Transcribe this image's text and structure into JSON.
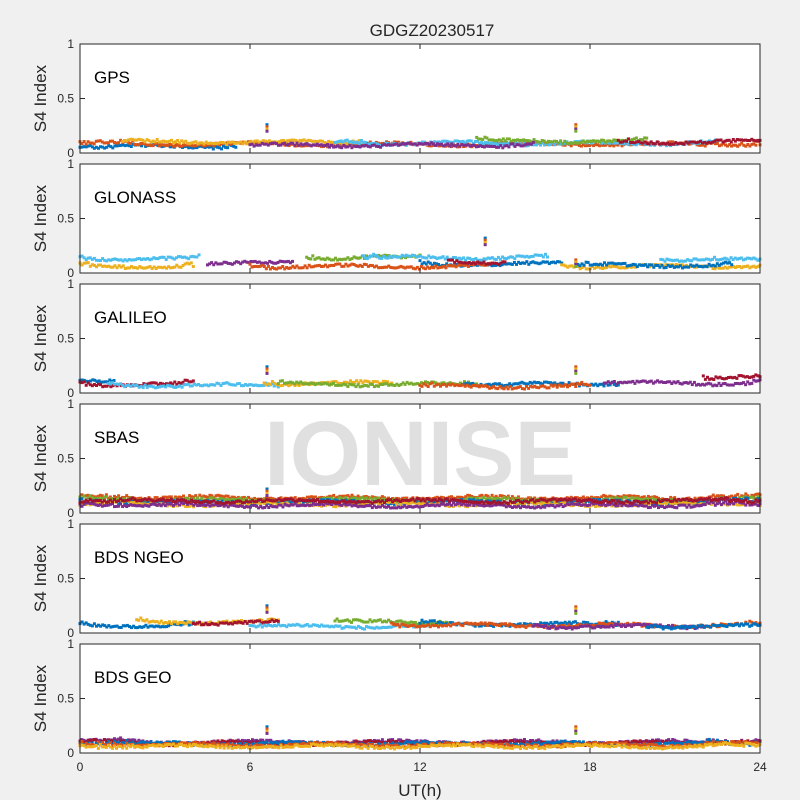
{
  "figure": {
    "title": "GDGZ20230517",
    "xlabel": "UT(h)",
    "watermark": "IONISE"
  },
  "chart_data": {
    "type": "scatter",
    "title": "GDGZ20230517",
    "xlabel": "UT(h)",
    "ylabel": "S4 Index",
    "xlim": [
      0,
      24
    ],
    "ylim": [
      0,
      1
    ],
    "x_ticks": [
      "0",
      "6",
      "12",
      "18",
      "24"
    ],
    "y_ticks": [
      "0",
      "0.5",
      "1"
    ],
    "grid": false,
    "series_colors": [
      "#0072BD",
      "#D95319",
      "#EDB120",
      "#7E2F8E",
      "#77AC30",
      "#4DBEEE",
      "#A2142F"
    ],
    "panels": [
      {
        "label": "GPS",
        "ylabel": "S4 Index",
        "s4_range": [
          0.04,
          0.16
        ],
        "spikes": [
          {
            "x": 6.6,
            "y": 0.26
          },
          {
            "x": 17.5,
            "y": 0.26
          }
        ],
        "arcs": [
          {
            "color": "#0072BD",
            "start": 0.0,
            "end": 5.5,
            "level": 0.06
          },
          {
            "color": "#D95319",
            "start": 0.0,
            "end": 24.0,
            "level": 0.08
          },
          {
            "color": "#EDB120",
            "start": 1.5,
            "end": 10.0,
            "level": 0.1
          },
          {
            "color": "#4DBEEE",
            "start": 9.0,
            "end": 22.5,
            "level": 0.09
          },
          {
            "color": "#77AC30",
            "start": 14.0,
            "end": 20.0,
            "level": 0.11
          },
          {
            "color": "#7E2F8E",
            "start": 6.0,
            "end": 16.0,
            "level": 0.07
          },
          {
            "color": "#A2142F",
            "start": 19.0,
            "end": 24.0,
            "level": 0.1
          }
        ]
      },
      {
        "label": "GLONASS",
        "ylabel": "S4 Index",
        "s4_range": [
          0.04,
          0.2
        ],
        "spikes": [
          {
            "x": 14.3,
            "y": 0.32
          },
          {
            "x": 17.5,
            "y": 0.12
          }
        ],
        "arcs": [
          {
            "color": "#4DBEEE",
            "start": 0.0,
            "end": 4.2,
            "level": 0.13
          },
          {
            "color": "#EDB120",
            "start": 0.0,
            "end": 4.0,
            "level": 0.06
          },
          {
            "color": "#7E2F8E",
            "start": 4.5,
            "end": 7.5,
            "level": 0.09
          },
          {
            "color": "#77AC30",
            "start": 8.0,
            "end": 12.0,
            "level": 0.14
          },
          {
            "color": "#4DBEEE",
            "start": 10.0,
            "end": 16.5,
            "level": 0.14
          },
          {
            "color": "#0072BD",
            "start": 12.0,
            "end": 17.0,
            "level": 0.08
          },
          {
            "color": "#D95319",
            "start": 6.0,
            "end": 14.5,
            "level": 0.06
          },
          {
            "color": "#A2142F",
            "start": 13.0,
            "end": 15.0,
            "level": 0.1
          },
          {
            "color": "#4DBEEE",
            "start": 20.5,
            "end": 24.0,
            "level": 0.12
          },
          {
            "color": "#EDB120",
            "start": 17.0,
            "end": 24.0,
            "level": 0.06
          },
          {
            "color": "#0072BD",
            "start": 17.5,
            "end": 23.0,
            "level": 0.07
          }
        ]
      },
      {
        "label": "GALILEO",
        "ylabel": "S4 Index",
        "s4_range": [
          0.04,
          0.18
        ],
        "spikes": [
          {
            "x": 6.6,
            "y": 0.24
          },
          {
            "x": 17.5,
            "y": 0.24
          }
        ],
        "arcs": [
          {
            "color": "#0072BD",
            "start": 0.0,
            "end": 1.2,
            "level": 0.1
          },
          {
            "color": "#A2142F",
            "start": 0.0,
            "end": 4.0,
            "level": 0.08
          },
          {
            "color": "#4DBEEE",
            "start": 1.0,
            "end": 7.0,
            "level": 0.07
          },
          {
            "color": "#EDB120",
            "start": 6.5,
            "end": 11.0,
            "level": 0.09
          },
          {
            "color": "#77AC30",
            "start": 7.0,
            "end": 14.0,
            "level": 0.08
          },
          {
            "color": "#0072BD",
            "start": 13.5,
            "end": 19.0,
            "level": 0.08
          },
          {
            "color": "#D95319",
            "start": 12.0,
            "end": 18.0,
            "level": 0.06
          },
          {
            "color": "#7E2F8E",
            "start": 18.5,
            "end": 24.0,
            "level": 0.09
          },
          {
            "color": "#A2142F",
            "start": 22.0,
            "end": 24.0,
            "level": 0.14
          }
        ]
      },
      {
        "label": "SBAS",
        "ylabel": "S4 Index",
        "s4_range": [
          0.05,
          0.2
        ],
        "spikes": [
          {
            "x": 6.6,
            "y": 0.22
          }
        ],
        "arcs": [
          {
            "color": "#D95319",
            "start": 0.0,
            "end": 24.0,
            "level": 0.14
          },
          {
            "color": "#77AC30",
            "start": 0.0,
            "end": 24.0,
            "level": 0.12
          },
          {
            "color": "#0072BD",
            "start": 0.0,
            "end": 24.0,
            "level": 0.1
          },
          {
            "color": "#EDB120",
            "start": 0.0,
            "end": 24.0,
            "level": 0.08
          },
          {
            "color": "#7E2F8E",
            "start": 0.0,
            "end": 24.0,
            "level": 0.07
          },
          {
            "color": "#A2142F",
            "start": 0.0,
            "end": 24.0,
            "level": 0.11
          }
        ]
      },
      {
        "label": "BDS NGEO",
        "ylabel": "S4 Index",
        "s4_range": [
          0.03,
          0.16
        ],
        "spikes": [
          {
            "x": 6.6,
            "y": 0.25
          },
          {
            "x": 17.5,
            "y": 0.24
          }
        ],
        "arcs": [
          {
            "color": "#0072BD",
            "start": 0.0,
            "end": 4.0,
            "level": 0.07
          },
          {
            "color": "#EDB120",
            "start": 2.0,
            "end": 7.0,
            "level": 0.1
          },
          {
            "color": "#A2142F",
            "start": 4.0,
            "end": 7.0,
            "level": 0.09
          },
          {
            "color": "#4DBEEE",
            "start": 6.0,
            "end": 13.0,
            "level": 0.06
          },
          {
            "color": "#77AC30",
            "start": 9.0,
            "end": 13.0,
            "level": 0.1
          },
          {
            "color": "#0072BD",
            "start": 12.0,
            "end": 19.0,
            "level": 0.08
          },
          {
            "color": "#D95319",
            "start": 11.0,
            "end": 24.0,
            "level": 0.07
          },
          {
            "color": "#7E2F8E",
            "start": 16.0,
            "end": 22.0,
            "level": 0.06
          },
          {
            "color": "#0072BD",
            "start": 20.0,
            "end": 24.0,
            "level": 0.06
          }
        ]
      },
      {
        "label": "BDS GEO",
        "ylabel": "S4 Index",
        "s4_range": [
          0.05,
          0.12
        ],
        "spikes": [
          {
            "x": 6.6,
            "y": 0.24
          },
          {
            "x": 17.5,
            "y": 0.24
          }
        ],
        "arcs": [
          {
            "color": "#7E2F8E",
            "start": 0.0,
            "end": 24.0,
            "level": 0.1
          },
          {
            "color": "#A2142F",
            "start": 0.0,
            "end": 24.0,
            "level": 0.09
          },
          {
            "color": "#0072BD",
            "start": 0.0,
            "end": 24.0,
            "level": 0.085
          },
          {
            "color": "#D95319",
            "start": 0.0,
            "end": 24.0,
            "level": 0.075
          },
          {
            "color": "#EDB120",
            "start": 0.0,
            "end": 24.0,
            "level": 0.06
          }
        ]
      }
    ]
  }
}
